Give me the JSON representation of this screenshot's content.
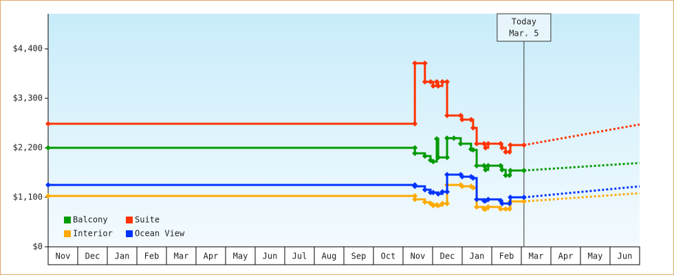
{
  "chart_data": {
    "type": "line",
    "step": "after",
    "ylim": [
      0,
      5180
    ],
    "yticks": [
      {
        "value": 0,
        "label": "$0"
      },
      {
        "value": 1100,
        "label": "$1,100"
      },
      {
        "value": 2200,
        "label": "$2,200"
      },
      {
        "value": 3300,
        "label": "$3,300"
      },
      {
        "value": 4400,
        "label": "$4,400"
      }
    ],
    "xlim": [
      0,
      20
    ],
    "categories": [
      "Nov",
      "Dec",
      "Jan",
      "Feb",
      "Mar",
      "Apr",
      "May",
      "Jun",
      "Jul",
      "Aug",
      "Sep",
      "Oct",
      "Nov",
      "Dec",
      "Jan",
      "Feb",
      "Mar",
      "Apr",
      "May",
      "Jun"
    ],
    "series": [
      {
        "name": "Balcony",
        "color": "#009900",
        "x": [
          0,
          12.4,
          12.4,
          12.74,
          12.93,
          13.02,
          13.14,
          13.19,
          13.49,
          13.49,
          13.72,
          13.95,
          14.3,
          14.37,
          14.49,
          14.74,
          14.79,
          14.88,
          15.3,
          15.35,
          15.47,
          15.6,
          15.63,
          16.09
        ],
        "values": [
          2200,
          2200,
          2078,
          2017,
          1925,
          1894,
          2399,
          1986,
          1986,
          2414,
          2414,
          2292,
          2169,
          2154,
          1803,
          1803,
          1711,
          1803,
          1803,
          1711,
          1589,
          1589,
          1696,
          1696
        ],
        "forecast": {
          "x": [
            16.09,
            20
          ],
          "values": [
            1696,
            1864
          ]
        }
      },
      {
        "name": "Suite",
        "color": "#ff3300",
        "x": [
          0,
          12.4,
          12.4,
          12.74,
          12.74,
          12.93,
          13.02,
          13.14,
          13.19,
          13.33,
          13.49,
          13.49,
          13.95,
          14.0,
          14.3,
          14.37,
          14.49,
          14.74,
          14.79,
          14.88,
          15.3,
          15.35,
          15.47,
          15.6,
          15.63,
          16.09
        ],
        "values": [
          2735,
          2735,
          4079,
          4079,
          3667,
          3667,
          3575,
          3667,
          3575,
          3667,
          3667,
          2918,
          2918,
          2826,
          2826,
          2643,
          2292,
          2292,
          2200,
          2292,
          2292,
          2200,
          2108,
          2108,
          2261,
          2261
        ],
        "forecast": {
          "x": [
            16.09,
            20
          ],
          "values": [
            2261,
            2719
          ]
        }
      },
      {
        "name": "Interior",
        "color": "#ffaa00",
        "x": [
          0,
          12.4,
          12.4,
          12.74,
          12.93,
          13.02,
          13.14,
          13.19,
          13.33,
          13.49,
          13.49,
          13.95,
          14.0,
          14.3,
          14.37,
          14.49,
          14.74,
          14.79,
          14.88,
          15.3,
          15.47,
          15.6,
          15.63,
          16.09
        ],
        "values": [
          1131,
          1131,
          1054,
          993,
          962,
          917,
          932,
          917,
          962,
          962,
          1375,
          1375,
          1344,
          1344,
          1314,
          886,
          840,
          840,
          886,
          840,
          840,
          840,
          1008,
          1008
        ],
        "forecast": {
          "x": [
            16.09,
            20
          ],
          "values": [
            1008,
            1192
          ]
        }
      },
      {
        "name": "Ocean View",
        "color": "#0033ff",
        "x": [
          0,
          12.4,
          12.4,
          12.74,
          12.93,
          13.02,
          13.19,
          13.33,
          13.49,
          13.49,
          13.95,
          14.0,
          14.3,
          14.37,
          14.49,
          14.74,
          14.79,
          14.88,
          15.3,
          15.35,
          15.6,
          15.63,
          16.09
        ],
        "values": [
          1375,
          1375,
          1344,
          1268,
          1207,
          1207,
          1176,
          1222,
          1222,
          1604,
          1604,
          1558,
          1558,
          1528,
          1054,
          1024,
          1024,
          1054,
          1024,
          962,
          962,
          1100,
          1100
        ],
        "forecast": {
          "x": [
            16.09,
            20
          ],
          "values": [
            1100,
            1344
          ]
        }
      }
    ],
    "annotation": {
      "x": 16.09,
      "text": [
        "Today",
        "Mar. 5"
      ]
    }
  }
}
